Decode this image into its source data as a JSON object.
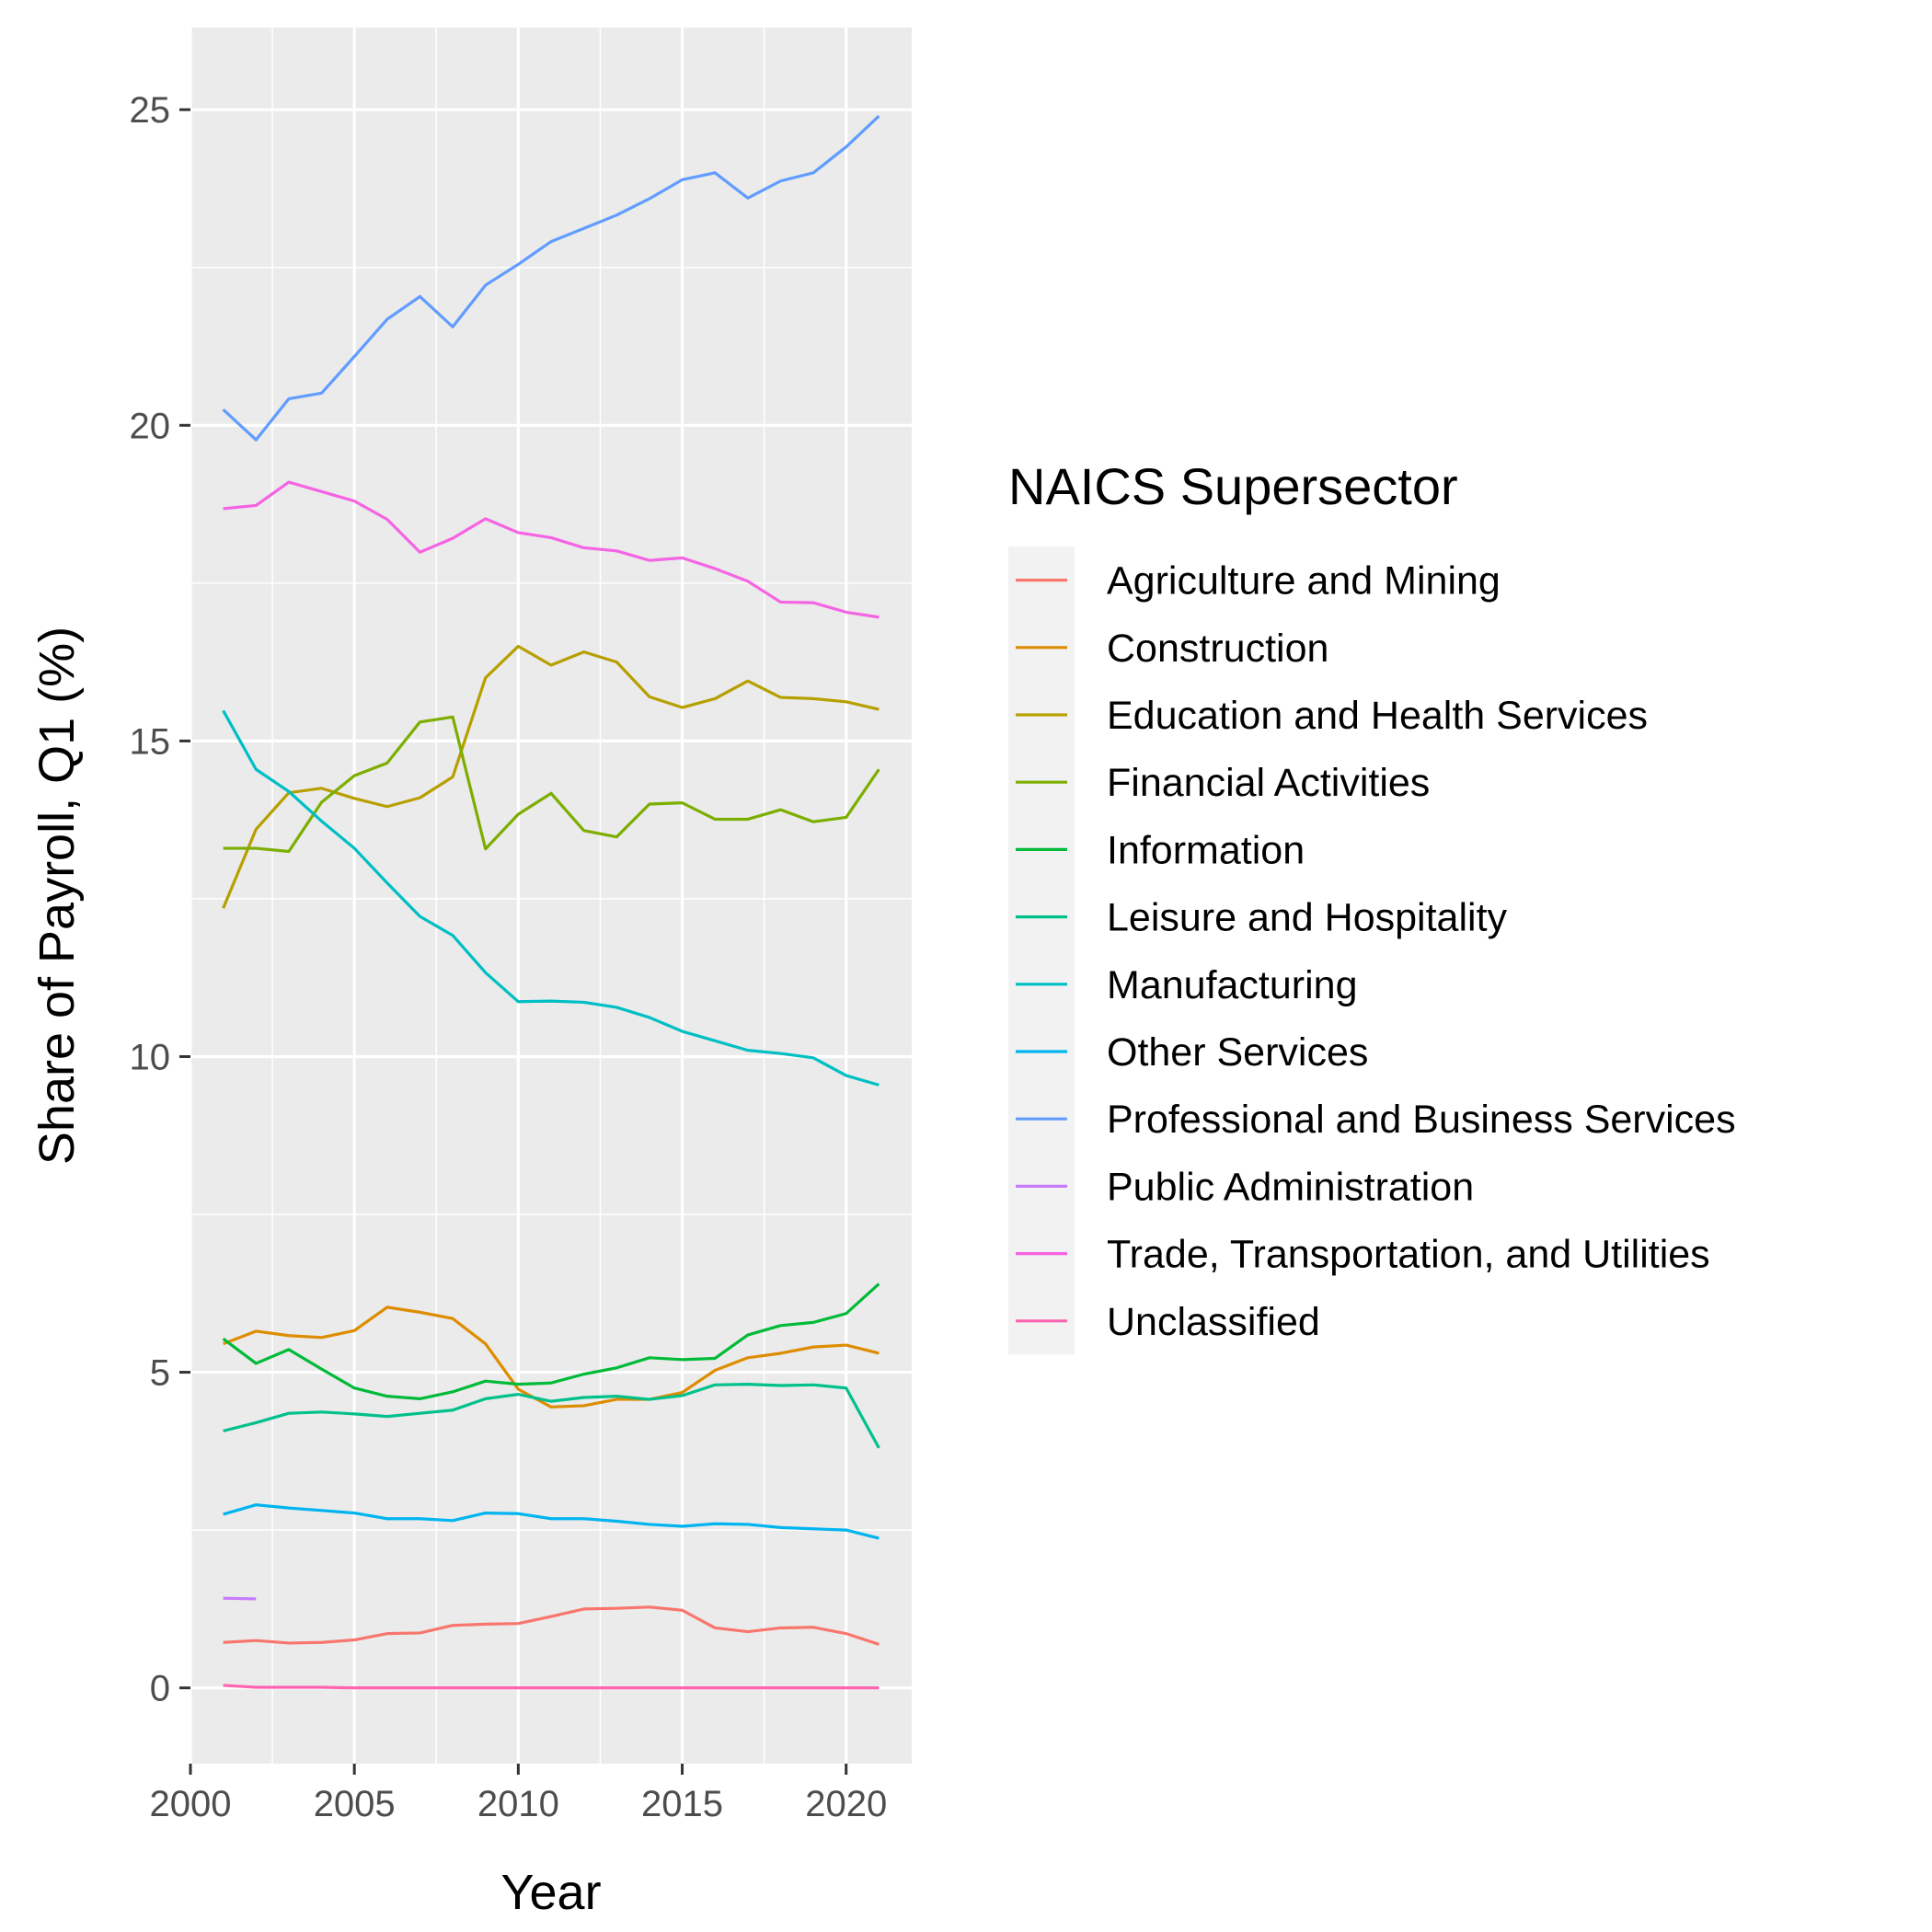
{
  "chart_data": {
    "type": "line",
    "xlabel": "Year",
    "ylabel": "Share of Payroll, Q1 (%)",
    "xlim": [
      2000,
      2022
    ],
    "ylim": [
      -1.2,
      26.3
    ],
    "x_ticks": [
      2000,
      2005,
      2010,
      2015,
      2020
    ],
    "y_ticks": [
      0,
      5,
      10,
      15,
      20,
      25
    ],
    "grid": true,
    "panel_background": "#ebebeb",
    "legend": {
      "title": "NAICS Supersector",
      "position": "right"
    },
    "x": [
      2001,
      2002,
      2003,
      2004,
      2005,
      2006,
      2007,
      2008,
      2009,
      2010,
      2011,
      2012,
      2013,
      2014,
      2015,
      2016,
      2017,
      2018,
      2019,
      2020,
      2021
    ],
    "series": [
      {
        "name": "Agriculture and Mining",
        "color": "#F8766D",
        "values": [
          0.72,
          0.75,
          0.71,
          0.72,
          0.76,
          0.86,
          0.87,
          0.99,
          1.01,
          1.02,
          1.13,
          1.25,
          1.26,
          1.28,
          1.23,
          0.95,
          0.89,
          0.95,
          0.96,
          0.86,
          0.69
        ]
      },
      {
        "name": "Construction",
        "color": "#DE8C00",
        "values": [
          5.45,
          5.65,
          5.58,
          5.55,
          5.66,
          6.03,
          5.95,
          5.85,
          5.45,
          4.73,
          4.45,
          4.47,
          4.57,
          4.57,
          4.68,
          5.03,
          5.23,
          5.3,
          5.4,
          5.43,
          5.3
        ]
      },
      {
        "name": "Education and Health Services",
        "color": "#B79F00",
        "values": [
          12.35,
          13.6,
          14.18,
          14.25,
          14.09,
          13.96,
          14.1,
          14.43,
          16.0,
          16.5,
          16.2,
          16.41,
          16.25,
          15.7,
          15.53,
          15.67,
          15.95,
          15.69,
          15.67,
          15.62,
          15.5
        ]
      },
      {
        "name": "Financial Activities",
        "color": "#7CAE00",
        "values": [
          13.3,
          13.3,
          13.25,
          14.03,
          14.45,
          14.65,
          15.3,
          15.38,
          13.29,
          13.84,
          14.17,
          13.58,
          13.48,
          14.0,
          14.02,
          13.76,
          13.76,
          13.91,
          13.72,
          13.79,
          14.55
        ]
      },
      {
        "name": "Information",
        "color": "#00BA38",
        "values": [
          5.53,
          5.14,
          5.36,
          5.05,
          4.75,
          4.62,
          4.58,
          4.69,
          4.86,
          4.81,
          4.83,
          4.97,
          5.07,
          5.23,
          5.2,
          5.22,
          5.59,
          5.74,
          5.79,
          5.93,
          6.4
        ]
      },
      {
        "name": "Leisure and Hospitality",
        "color": "#00C08B",
        "values": [
          4.07,
          4.2,
          4.35,
          4.37,
          4.34,
          4.3,
          4.35,
          4.4,
          4.58,
          4.65,
          4.54,
          4.6,
          4.62,
          4.57,
          4.63,
          4.8,
          4.81,
          4.79,
          4.8,
          4.75,
          3.8
        ]
      },
      {
        "name": "Manufacturing",
        "color": "#00BFC4",
        "values": [
          15.48,
          14.55,
          14.2,
          13.73,
          13.3,
          12.75,
          12.22,
          11.92,
          11.33,
          10.87,
          10.88,
          10.86,
          10.78,
          10.62,
          10.4,
          10.25,
          10.1,
          10.05,
          9.98,
          9.7,
          9.55
        ]
      },
      {
        "name": "Other Services",
        "color": "#00B4F0",
        "values": [
          2.75,
          2.9,
          2.85,
          2.81,
          2.77,
          2.68,
          2.68,
          2.65,
          2.77,
          2.76,
          2.68,
          2.68,
          2.64,
          2.59,
          2.56,
          2.6,
          2.59,
          2.54,
          2.52,
          2.5,
          2.37
        ]
      },
      {
        "name": "Professional and Business Services",
        "color": "#619CFF",
        "values": [
          20.25,
          19.77,
          20.42,
          20.51,
          21.09,
          21.68,
          22.04,
          21.56,
          22.22,
          22.55,
          22.91,
          23.12,
          23.33,
          23.59,
          23.89,
          24.0,
          23.6,
          23.87,
          24.0,
          24.41,
          24.9
        ]
      },
      {
        "name": "Public Administration",
        "color": "#C77CFF",
        "values": [
          1.42,
          1.41,
          null,
          null,
          null,
          null,
          null,
          null,
          null,
          null,
          null,
          null,
          null,
          null,
          null,
          null,
          null,
          null,
          null,
          null,
          null
        ]
      },
      {
        "name": "Trade, Transportation, and Utilities",
        "color": "#F564E3",
        "values": [
          18.68,
          18.73,
          19.1,
          18.95,
          18.8,
          18.51,
          17.99,
          18.21,
          18.52,
          18.3,
          18.22,
          18.06,
          18.01,
          17.86,
          17.9,
          17.73,
          17.53,
          17.2,
          17.19,
          17.04,
          16.96
        ]
      },
      {
        "name": "Unclassified",
        "color": "#FF64B0",
        "values": [
          0.04,
          0.01,
          0.01,
          0.01,
          0.0,
          0.0,
          0.0,
          0.0,
          0.0,
          0.0,
          0.0,
          0.0,
          0.0,
          0.0,
          0.0,
          0.0,
          0.0,
          0.0,
          0.0,
          0.0,
          0.0
        ]
      }
    ]
  }
}
